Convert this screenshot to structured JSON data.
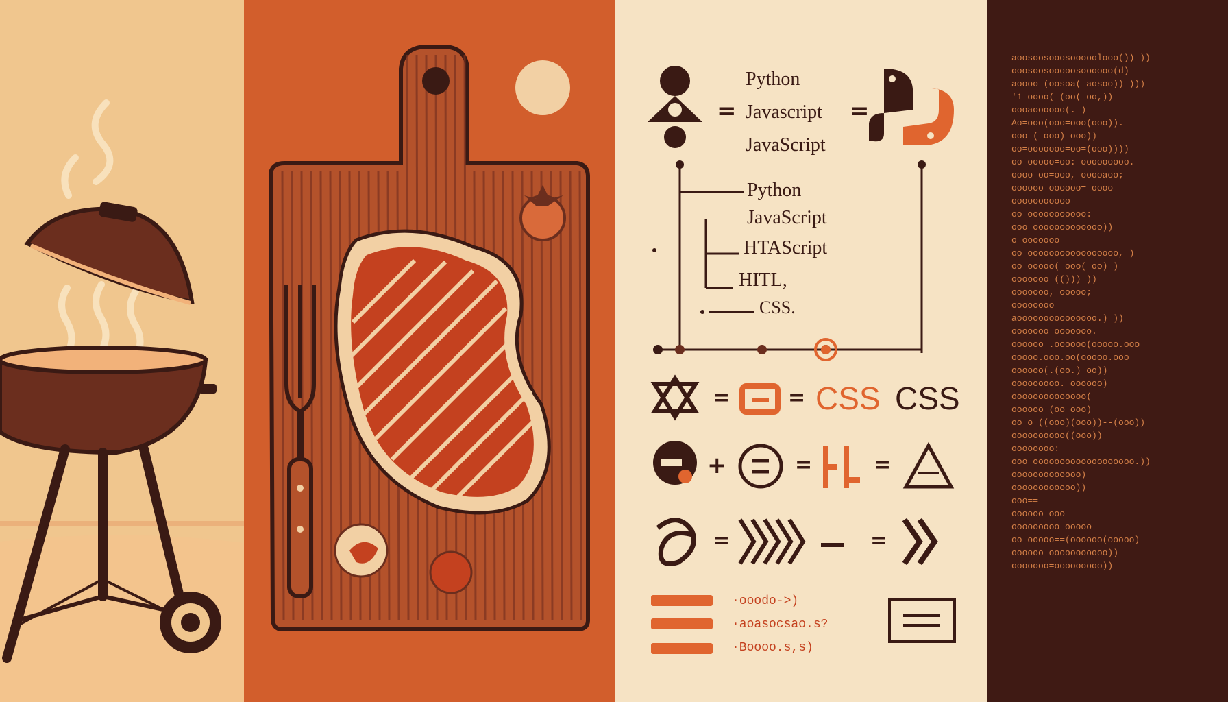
{
  "colors": {
    "cream": "#f6e3c4",
    "sand": "#f0c68e",
    "orange": "#d25e2c",
    "rust": "#b4522b",
    "dark_brown": "#3a1a14",
    "code_bg": "#3f1a14",
    "code_text": "#e38a4d",
    "accent_orange": "#e0652f"
  },
  "icons": [
    "grill-icon",
    "steam-icon",
    "cutting-board-icon",
    "steak-icon",
    "fork-icon",
    "tomato-icon",
    "python-logo-icon",
    "triangle-icon",
    "circle-equals-icon",
    "chevron-right-icon"
  ],
  "equation_row_1": {
    "labels": [
      "Python",
      "Javascript",
      "JavaScript"
    ],
    "operator": "="
  },
  "tree": {
    "items": [
      "Python",
      "JavaScript",
      "HTAScript",
      "HITL,",
      "CSS."
    ]
  },
  "equation_row_2": {
    "op": "=",
    "css_orange": "CSS",
    "css_dark": "CSS"
  },
  "equation_row_3": {
    "plus": "+",
    "eq": "="
  },
  "equation_row_4": {
    "eq": "="
  },
  "snippets": [
    "·ooodo->)",
    "·aoasocsao.s?",
    "·Boooo.s,s)"
  ],
  "code_lines": [
    "aoosoosooosooooolooo()) ))",
    "ooosoosooooosoooooo(d)",
    "aoooo (oosoa( aosoo)) )))",
    "'1 oooo( (oo(    oo,))",
    "    oooaoooooo(.   )",
    "   Ao=ooo(ooo=ooo(ooo)).",
    "  ooo  (   ooo)    ooo))",
    "  oo=ooooooo=oo=(ooo))))",
    "   oo ooooo=oo: ooooooooo.",
    "   oooo  oo=ooo,  ooooaoo;",
    "  oooooo oooooo= oooo",
    "    ooooooooooo",
    "  oo ooooooooooo:",
    "     ooo ooooooooooooo))",
    "    o ooooooo",
    "oo ooooooooooooooooo,    )",
    "   oo ooooo( ooo( oo)   )",
    "    ooooooo=(()))     ))",
    "  ooooooo,  ooooo;",
    "   oooooooo",
    "aooooooooooooooo.)  ))",
    "  ooooooo   ooooooo.",
    "    oooooo   .oooooo(ooooo.ooo",
    "       ooooo.ooo.oo(ooooo.ooo",
    "    oooooo(.(oo.) oo))",
    "  ooooooooo.  oooooo)",
    "  oooooooooooooo(",
    " oooooo   (oo       ooo)",
    "   oo o ((ooo)(ooo))--(ooo))",
    "  oooooooooo((ooo))",
    "   oooooooo:",
    "ooo ooooooooooooooooooo.))",
    "   ooooooooooooo)",
    "  oooooooooooo))",
    "    ooo==",
    "   oooooo     ooo",
    "  ooooooooo ooooo",
    "oo ooooo==(oooooo(ooooo)",
    "     oooooo ooooooooooo))",
    " ooooooo=ooooooooo))"
  ]
}
